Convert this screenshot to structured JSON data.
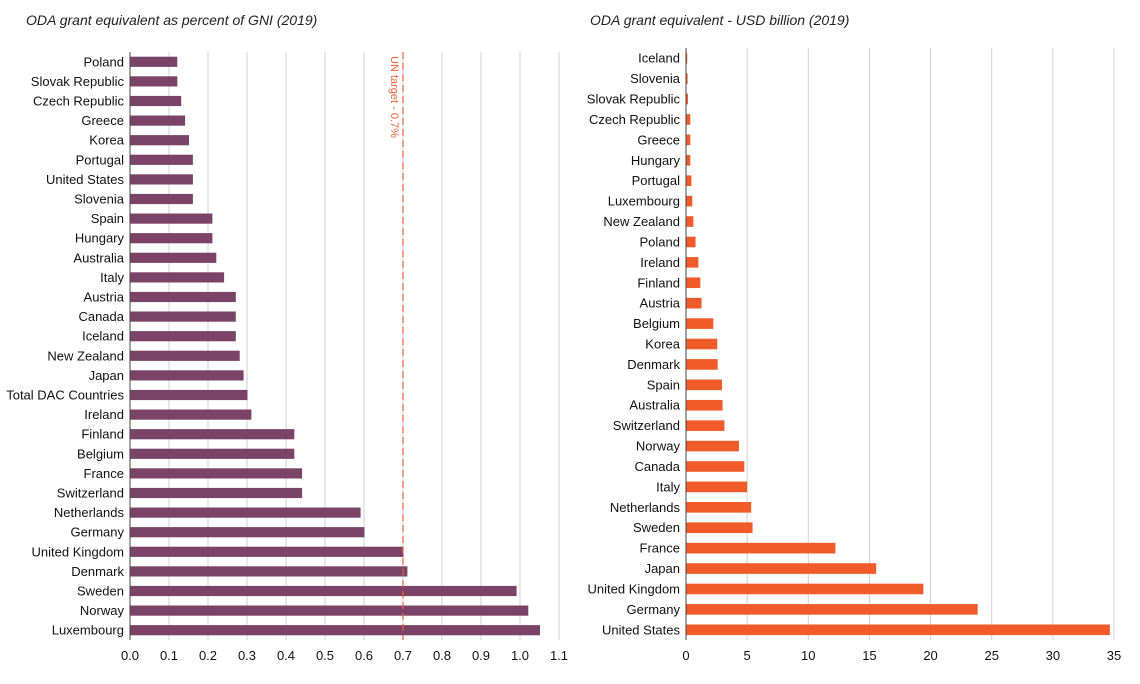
{
  "colors": {
    "gni_bar": "#7b4368",
    "usd_bar": "#f15a29",
    "target_line": "#e8603c",
    "grid": "#d0d0d0",
    "axis": "#444444"
  },
  "chart_data": [
    {
      "type": "bar",
      "orientation": "horizontal",
      "title": "ODA grant equivalent as percent of GNI (2019)",
      "categories": [
        "Poland",
        "Slovak Republic",
        "Czech Republic",
        "Greece",
        "Korea",
        "Portugal",
        "United States",
        "Slovenia",
        "Spain",
        "Hungary",
        "Australia",
        "Italy",
        "Austria",
        "Canada",
        "Iceland",
        "New Zealand",
        "Japan",
        "Total DAC Countries",
        "Ireland",
        "Finland",
        "Belgium",
        "France",
        "Switzerland",
        "Netherlands",
        "Germany",
        "United Kingdom",
        "Denmark",
        "Sweden",
        "Norway",
        "Luxembourg"
      ],
      "values": [
        0.12,
        0.12,
        0.13,
        0.14,
        0.15,
        0.16,
        0.16,
        0.16,
        0.21,
        0.21,
        0.22,
        0.24,
        0.27,
        0.27,
        0.27,
        0.28,
        0.29,
        0.3,
        0.31,
        0.42,
        0.42,
        0.44,
        0.44,
        0.59,
        0.6,
        0.7,
        0.71,
        0.99,
        1.02,
        1.05
      ],
      "xlim": [
        0,
        1.1
      ],
      "xticks": [
        "0.0",
        "0.1",
        "0.2",
        "0.3",
        "0.4",
        "0.5",
        "0.6",
        "0.7",
        "0.8",
        "0.9",
        "1.0",
        "1.1"
      ],
      "reference_line": {
        "value": 0.7,
        "label": "UN target - 0.7%"
      }
    },
    {
      "type": "bar",
      "orientation": "horizontal",
      "title": "ODA grant equivalent - USD billion (2019)",
      "categories": [
        "Iceland",
        "Slovenia",
        "Slovak Republic",
        "Czech Republic",
        "Greece",
        "Hungary",
        "Portugal",
        "Luxembourg",
        "New Zealand",
        "Poland",
        "Ireland",
        "Finland",
        "Austria",
        "Belgium",
        "Korea",
        "Denmark",
        "Spain",
        "Australia",
        "Switzerland",
        "Norway",
        "Canada",
        "Italy",
        "Netherlands",
        "Sweden",
        "France",
        "Japan",
        "United Kingdom",
        "Germany",
        "United States"
      ],
      "values": [
        0.06,
        0.09,
        0.12,
        0.31,
        0.31,
        0.31,
        0.4,
        0.47,
        0.56,
        0.74,
        0.97,
        1.13,
        1.23,
        2.19,
        2.52,
        2.55,
        2.9,
        2.95,
        3.1,
        4.29,
        4.73,
        4.96,
        5.29,
        5.4,
        12.18,
        15.51,
        19.37,
        23.81,
        34.62
      ],
      "xlim": [
        0,
        35
      ],
      "xticks": [
        "0",
        "5",
        "10",
        "15",
        "20",
        "25",
        "30",
        "35"
      ]
    }
  ]
}
